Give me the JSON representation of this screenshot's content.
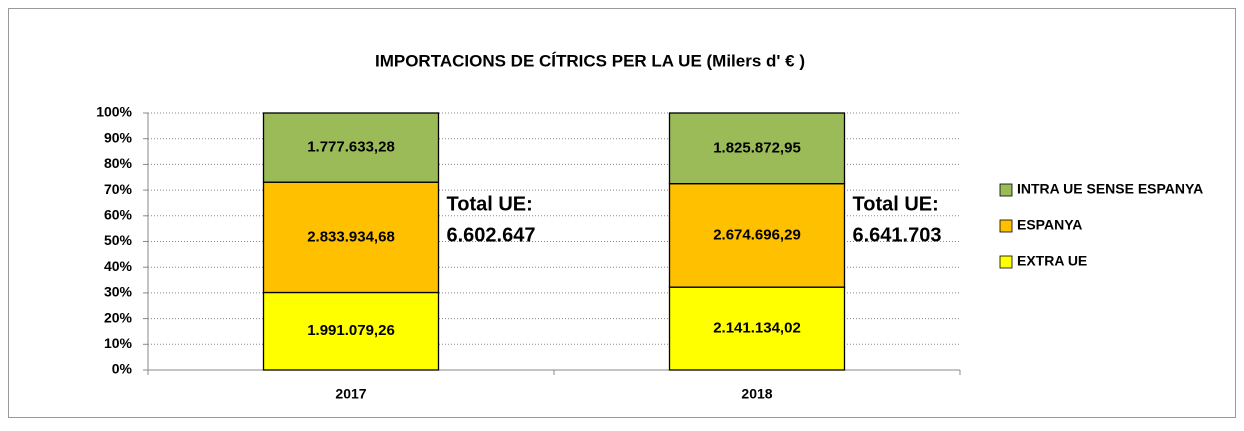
{
  "chart_data": {
    "type": "bar",
    "stacking": "percent",
    "title": "IMPORTACIONS DE CÍTRICS PER LA UE (Milers d' € )",
    "categories": [
      "2017",
      "2018"
    ],
    "series": [
      {
        "name": "EXTRA UE",
        "color": "#ffff00",
        "values": [
          1991079.26,
          2141134.02
        ],
        "value_labels": [
          "1.991.079,26",
          "2.141.134,02"
        ]
      },
      {
        "name": "ESPANYA",
        "color": "#ffc000",
        "values": [
          2833934.68,
          2674696.29
        ],
        "value_labels": [
          "2.833.934,68",
          "2.674.696,29"
        ]
      },
      {
        "name": "INTRA UE SENSE ESPANYA",
        "color": "#9bbb59",
        "values": [
          1777633.28,
          1825872.95
        ],
        "value_labels": [
          "1.777.633,28",
          "1.825.872,95"
        ]
      }
    ],
    "annotations": [
      [
        "Total UE:",
        "6.602.647"
      ],
      [
        "Total UE:",
        "6.641.703"
      ]
    ],
    "ylim": [
      0,
      100
    ],
    "yticks": [
      {
        "value": 0,
        "label": "0%"
      },
      {
        "value": 10,
        "label": "10%"
      },
      {
        "value": 20,
        "label": "20%"
      },
      {
        "value": 30,
        "label": "30%"
      },
      {
        "value": 40,
        "label": "40%"
      },
      {
        "value": 50,
        "label": "50%"
      },
      {
        "value": 60,
        "label": "60%"
      },
      {
        "value": 70,
        "label": "70%"
      },
      {
        "value": 80,
        "label": "80%"
      },
      {
        "value": 90,
        "label": "90%"
      },
      {
        "value": 100,
        "label": "100%"
      }
    ],
    "grid": true,
    "legend": "right"
  }
}
